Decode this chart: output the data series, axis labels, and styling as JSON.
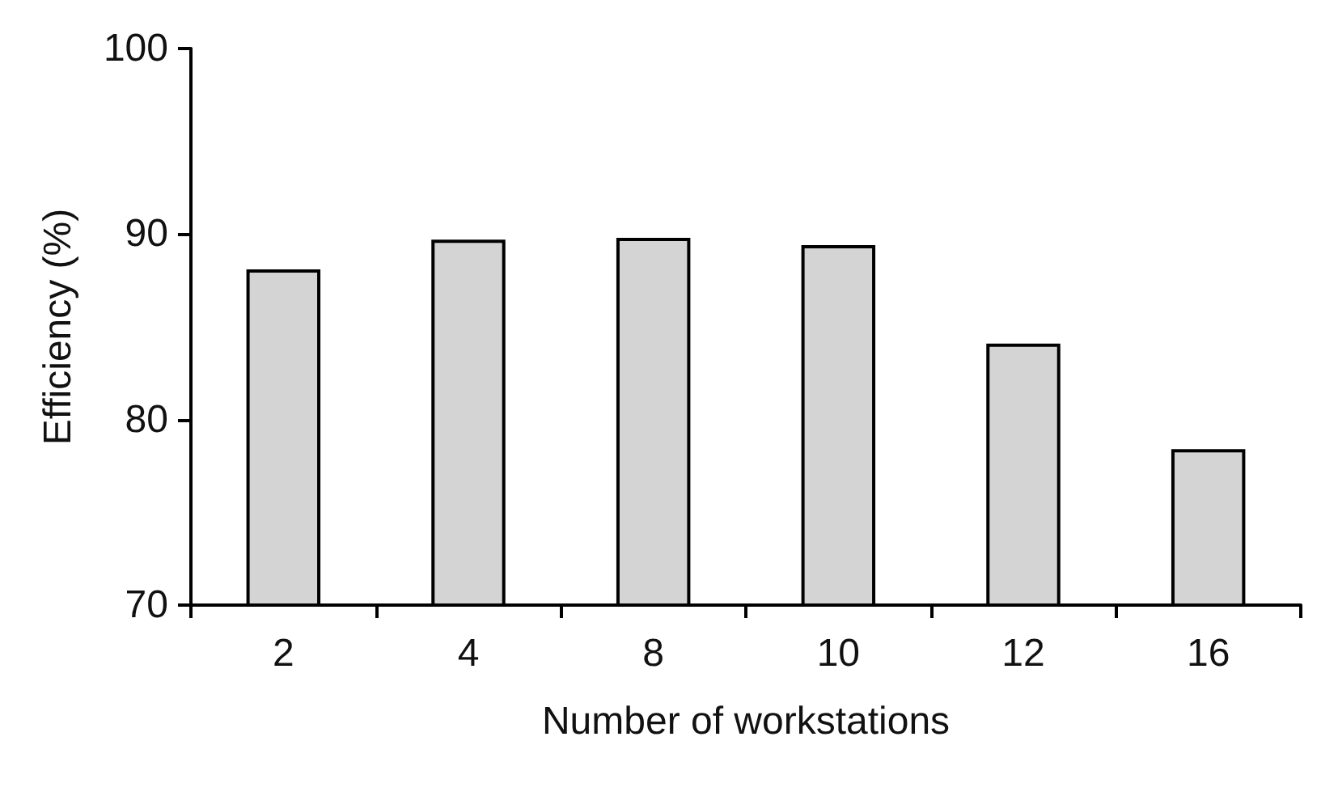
{
  "chart_data": {
    "type": "bar",
    "xlabel": "Number of workstations",
    "ylabel": "Efficiency (%)",
    "categories": [
      "2",
      "4",
      "8",
      "10",
      "12",
      "16"
    ],
    "values": [
      88.1,
      89.7,
      89.8,
      89.4,
      84.1,
      78.4
    ],
    "color": "#d4d4d4",
    "ylim": [
      70,
      100
    ],
    "yticks": [
      70,
      80,
      90,
      100
    ],
    "grid": false
  }
}
